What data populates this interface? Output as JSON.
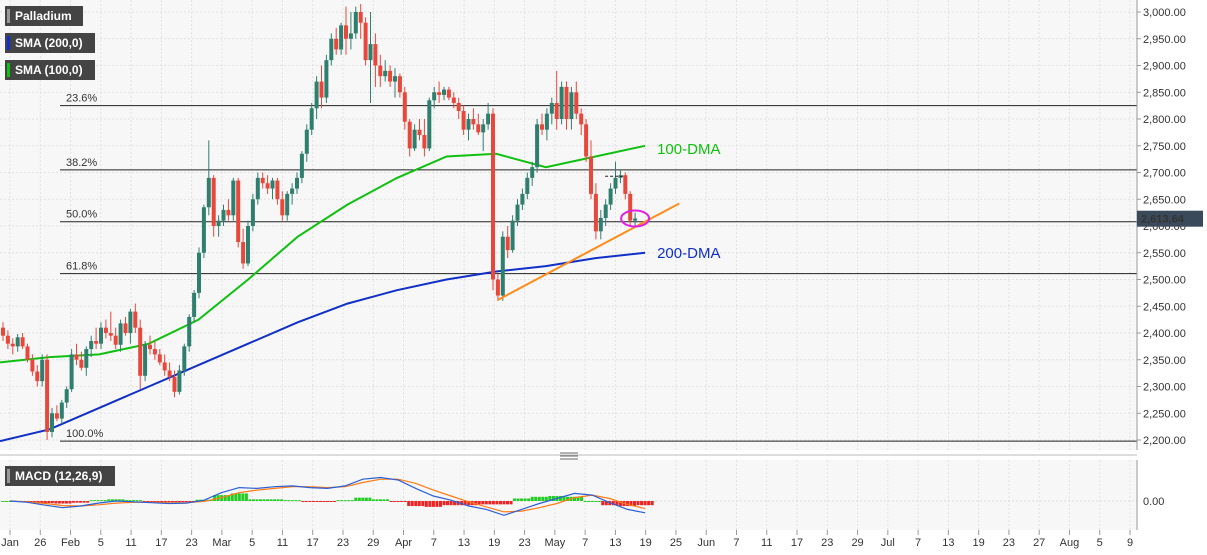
{
  "colors": {
    "bull": "#2f7f6f",
    "bear": "#e8473b",
    "dma100": "#10c010",
    "dma200": "#1030c8",
    "trend": "#ff8c1a",
    "circle": "#e020e0",
    "macd_line": "#2a5fd8",
    "signal_line": "#ff7a14",
    "hist_pos": "#22cc22",
    "hist_neg": "#ee2222",
    "price_tag": "#3b4a5a"
  },
  "legend": {
    "symbol": "Palladium",
    "sma200": "SMA (200,0)",
    "sma100": "SMA (100,0)",
    "macd": "MACD (12,26,9)"
  },
  "chart_data": [
    {
      "type": "candlestick",
      "title": "Palladium",
      "ylim": [
        2180,
        3020
      ],
      "y_ticks": [
        "3,000.00",
        "2,950.00",
        "2,900.00",
        "2,850.00",
        "2,800.00",
        "2,750.00",
        "2,700.00",
        "2,650.00",
        "2,600.00",
        "2,550.00",
        "2,500.00",
        "2,450.00",
        "2,400.00",
        "2,350.00",
        "2,300.00",
        "2,250.00",
        "2,200.00"
      ],
      "x_ticks": [
        "Jan",
        "26",
        "Feb",
        "5",
        "11",
        "17",
        "23",
        "Mar",
        "5",
        "11",
        "17",
        "23",
        "29",
        "Apr",
        "7",
        "13",
        "19",
        "23",
        "May",
        "7",
        "13",
        "19",
        "25",
        "Jun",
        "7",
        "11",
        "17",
        "23",
        "29",
        "Jul",
        "7",
        "13",
        "19",
        "23",
        "27",
        "Aug",
        "5",
        "9"
      ],
      "last_price": "2,613.64",
      "fibonacci": [
        {
          "label": "23.6%",
          "value": 2825
        },
        {
          "label": "38.2%",
          "value": 2705
        },
        {
          "label": "50.0%",
          "value": 2608
        },
        {
          "label": "61.8%",
          "value": 2511
        },
        {
          "label": "100.0%",
          "value": 2198
        }
      ],
      "annotations": {
        "dma100": "100-DMA",
        "dma200": "200-DMA"
      },
      "candles": [
        [
          2410,
          2420,
          2385,
          2395
        ],
        [
          2395,
          2405,
          2370,
          2380
        ],
        [
          2380,
          2390,
          2360,
          2375
        ],
        [
          2375,
          2398,
          2365,
          2392
        ],
        [
          2392,
          2400,
          2370,
          2375
        ],
        [
          2375,
          2380,
          2345,
          2350
        ],
        [
          2350,
          2360,
          2320,
          2328
        ],
        [
          2328,
          2340,
          2300,
          2310
        ],
        [
          2310,
          2360,
          2300,
          2350
        ],
        [
          2350,
          2360,
          2200,
          2215
        ],
        [
          2215,
          2260,
          2205,
          2250
        ],
        [
          2250,
          2265,
          2235,
          2240
        ],
        [
          2240,
          2275,
          2230,
          2270
        ],
        [
          2270,
          2300,
          2260,
          2295
        ],
        [
          2295,
          2370,
          2290,
          2360
        ],
        [
          2360,
          2380,
          2340,
          2350
        ],
        [
          2350,
          2365,
          2330,
          2335
        ],
        [
          2335,
          2375,
          2320,
          2370
        ],
        [
          2370,
          2395,
          2355,
          2385
        ],
        [
          2385,
          2410,
          2370,
          2380
        ],
        [
          2380,
          2420,
          2370,
          2410
        ],
        [
          2410,
          2425,
          2390,
          2400
        ],
        [
          2400,
          2440,
          2385,
          2395
        ],
        [
          2395,
          2410,
          2370,
          2378
        ],
        [
          2378,
          2425,
          2365,
          2418
        ],
        [
          2418,
          2430,
          2395,
          2400
        ],
        [
          2400,
          2445,
          2380,
          2440
        ],
        [
          2440,
          2455,
          2400,
          2410
        ],
        [
          2410,
          2425,
          2295,
          2320
        ],
        [
          2320,
          2385,
          2310,
          2378
        ],
        [
          2378,
          2395,
          2360,
          2370
        ],
        [
          2370,
          2385,
          2350,
          2360
        ],
        [
          2360,
          2370,
          2340,
          2345
        ],
        [
          2345,
          2360,
          2320,
          2330
        ],
        [
          2330,
          2345,
          2310,
          2318
        ],
        [
          2318,
          2330,
          2280,
          2290
        ],
        [
          2290,
          2340,
          2285,
          2330
        ],
        [
          2330,
          2380,
          2320,
          2375
        ],
        [
          2375,
          2435,
          2365,
          2430
        ],
        [
          2430,
          2480,
          2420,
          2475
        ],
        [
          2475,
          2560,
          2465,
          2550
        ],
        [
          2550,
          2640,
          2540,
          2635
        ],
        [
          2635,
          2760,
          2620,
          2690
        ],
        [
          2690,
          2695,
          2580,
          2600
        ],
        [
          2600,
          2620,
          2580,
          2610
        ],
        [
          2610,
          2640,
          2600,
          2630
        ],
        [
          2630,
          2650,
          2610,
          2620
        ],
        [
          2620,
          2690,
          2610,
          2685
        ],
        [
          2685,
          2690,
          2560,
          2570
        ],
        [
          2570,
          2595,
          2520,
          2530
        ],
        [
          2530,
          2610,
          2525,
          2600
        ],
        [
          2600,
          2660,
          2590,
          2650
        ],
        [
          2650,
          2700,
          2640,
          2690
        ],
        [
          2690,
          2700,
          2670,
          2680
        ],
        [
          2680,
          2695,
          2660,
          2670
        ],
        [
          2670,
          2690,
          2650,
          2685
        ],
        [
          2685,
          2690,
          2640,
          2650
        ],
        [
          2650,
          2665,
          2610,
          2620
        ],
        [
          2620,
          2665,
          2610,
          2660
        ],
        [
          2660,
          2680,
          2640,
          2670
        ],
        [
          2670,
          2700,
          2660,
          2690
        ],
        [
          2690,
          2740,
          2680,
          2735
        ],
        [
          2735,
          2790,
          2720,
          2780
        ],
        [
          2780,
          2830,
          2770,
          2820
        ],
        [
          2820,
          2880,
          2800,
          2870
        ],
        [
          2870,
          2900,
          2820,
          2840
        ],
        [
          2840,
          2920,
          2830,
          2910
        ],
        [
          2910,
          2960,
          2900,
          2950
        ],
        [
          2950,
          2970,
          2920,
          2930
        ],
        [
          2930,
          2980,
          2920,
          2975
        ],
        [
          2975,
          3010,
          2920,
          2950
        ],
        [
          2950,
          3000,
          2930,
          2960
        ],
        [
          2960,
          3010,
          2950,
          3000
        ],
        [
          3000,
          3015,
          2950,
          2980
        ],
        [
          2980,
          2990,
          2900,
          2910
        ],
        [
          2910,
          3000,
          2830,
          2940
        ],
        [
          2940,
          2960,
          2860,
          2900
        ],
        [
          2900,
          2920,
          2860,
          2880
        ],
        [
          2880,
          2910,
          2870,
          2890
        ],
        [
          2890,
          2900,
          2860,
          2870
        ],
        [
          2870,
          2895,
          2840,
          2880
        ],
        [
          2880,
          2885,
          2840,
          2850
        ],
        [
          2850,
          2860,
          2780,
          2795
        ],
        [
          2795,
          2800,
          2730,
          2745
        ],
        [
          2745,
          2790,
          2740,
          2780
        ],
        [
          2780,
          2800,
          2760,
          2770
        ],
        [
          2770,
          2800,
          2730,
          2745
        ],
        [
          2745,
          2840,
          2740,
          2835
        ],
        [
          2835,
          2860,
          2820,
          2850
        ],
        [
          2850,
          2870,
          2830,
          2845
        ],
        [
          2845,
          2860,
          2835,
          2855
        ],
        [
          2855,
          2860,
          2835,
          2840
        ],
        [
          2840,
          2850,
          2820,
          2830
        ],
        [
          2830,
          2840,
          2800,
          2815
        ],
        [
          2815,
          2825,
          2770,
          2780
        ],
        [
          2780,
          2810,
          2760,
          2800
        ],
        [
          2800,
          2820,
          2780,
          2790
        ],
        [
          2790,
          2810,
          2770,
          2775
        ],
        [
          2775,
          2800,
          2740,
          2790
        ],
        [
          2790,
          2830,
          2780,
          2810
        ],
        [
          2810,
          2820,
          2480,
          2500
        ],
        [
          2500,
          2510,
          2460,
          2470
        ],
        [
          2470,
          2590,
          2460,
          2580
        ],
        [
          2580,
          2600,
          2540,
          2555
        ],
        [
          2555,
          2620,
          2550,
          2610
        ],
        [
          2610,
          2650,
          2600,
          2640
        ],
        [
          2640,
          2670,
          2630,
          2660
        ],
        [
          2660,
          2700,
          2650,
          2690
        ],
        [
          2690,
          2720,
          2675,
          2710
        ],
        [
          2710,
          2800,
          2700,
          2790
        ],
        [
          2790,
          2810,
          2770,
          2780
        ],
        [
          2780,
          2820,
          2760,
          2810
        ],
        [
          2810,
          2840,
          2790,
          2830
        ],
        [
          2830,
          2890,
          2780,
          2800
        ],
        [
          2800,
          2870,
          2790,
          2860
        ],
        [
          2860,
          2870,
          2780,
          2800
        ],
        [
          2800,
          2860,
          2780,
          2850
        ],
        [
          2850,
          2870,
          2800,
          2810
        ],
        [
          2810,
          2820,
          2770,
          2790
        ],
        [
          2790,
          2800,
          2720,
          2730
        ],
        [
          2730,
          2760,
          2650,
          2660
        ],
        [
          2660,
          2680,
          2575,
          2590
        ],
        [
          2590,
          2630,
          2575,
          2615
        ],
        [
          2615,
          2650,
          2600,
          2640
        ],
        [
          2640,
          2680,
          2630,
          2670
        ],
        [
          2670,
          2720,
          2660,
          2690
        ],
        [
          2690,
          2705,
          2680,
          2695
        ],
        [
          2695,
          2700,
          2650,
          2660
        ],
        [
          2660,
          2665,
          2600,
          2610
        ],
        [
          2610,
          2625,
          2600,
          2614
        ]
      ],
      "sma100": [
        2345,
        2355,
        2360,
        2380,
        2425,
        2500,
        2580,
        2640,
        2690,
        2730,
        2735,
        2710,
        2730,
        2750
      ],
      "sma200": [
        2198,
        2220,
        2260,
        2300,
        2340,
        2380,
        2420,
        2455,
        2480,
        2500,
        2515,
        2525,
        2540,
        2550
      ]
    },
    {
      "type": "macd",
      "title": "MACD (12,26,9)",
      "y_ticks": [
        "0.00"
      ],
      "macd": [
        0,
        -3,
        -10,
        -16,
        -12,
        -5,
        0,
        -2,
        -4,
        -6,
        -5,
        2,
        20,
        32,
        30,
        34,
        36,
        32,
        30,
        36,
        52,
        56,
        50,
        30,
        12,
        2,
        -12,
        -20,
        -34,
        -20,
        -6,
        6,
        18,
        14,
        -4,
        -20,
        -28
      ],
      "signal": [
        0,
        -2,
        -6,
        -11,
        -12,
        -9,
        -5,
        -3,
        -3,
        -4,
        -4,
        -1,
        8,
        20,
        26,
        30,
        34,
        34,
        32,
        34,
        44,
        52,
        52,
        42,
        26,
        12,
        -2,
        -14,
        -26,
        -24,
        -16,
        -6,
        8,
        14,
        6,
        -8,
        -18
      ],
      "histogram": [
        0,
        -2,
        -5,
        -6,
        -4,
        2,
        4,
        2,
        -1,
        -2,
        -1,
        3,
        14,
        18,
        4,
        4,
        2,
        -2,
        -2,
        2,
        8,
        4,
        -2,
        -12,
        -14,
        -10,
        -10,
        -8,
        -8,
        6,
        10,
        12,
        10,
        0,
        -10,
        -12,
        -10
      ]
    }
  ]
}
